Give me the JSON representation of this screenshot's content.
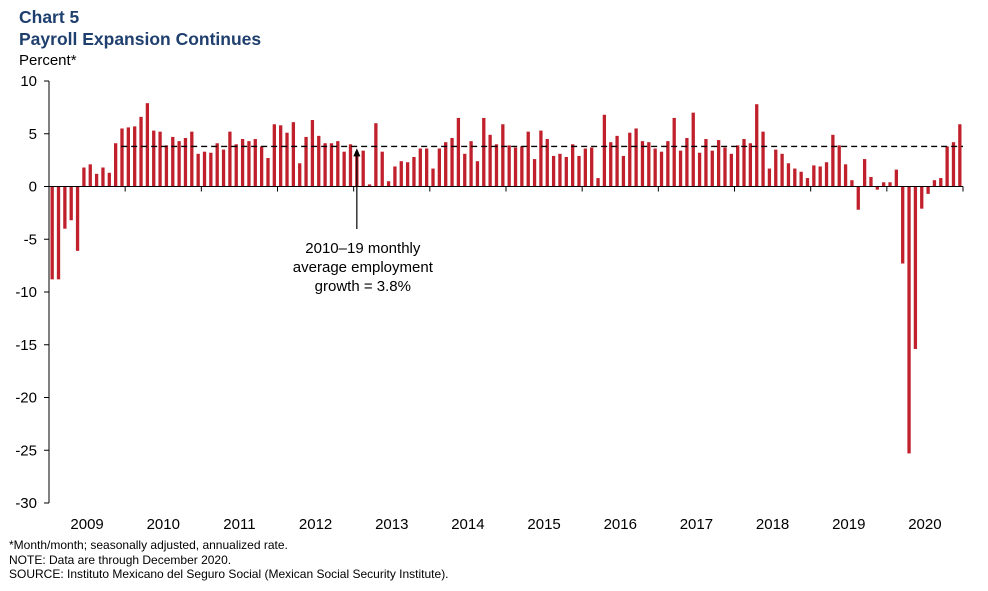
{
  "header": {
    "chart_number": "Chart 5",
    "title": "Payroll Expansion Continues",
    "units": "Percent*"
  },
  "footnotes": [
    "*Month/month; seasonally adjusted, annualized rate.",
    "NOTE: Data are through December 2020.",
    "SOURCE: Instituto Mexicano del Seguro Social (Mexican Social Security Institute)."
  ],
  "annotation": {
    "lines": [
      "2010–19 monthly",
      "average employment",
      "growth = 3.8%"
    ]
  },
  "colors": {
    "bar": "#c0202b",
    "title": "#1f3f6e",
    "axis": "#000000",
    "reference_line": "#000000"
  },
  "chart_data": {
    "type": "bar",
    "title": "Payroll Expansion Continues",
    "ylabel": "Percent*",
    "xlabel": "",
    "ylim": [
      -30,
      10
    ],
    "yticks": [
      10,
      5,
      0,
      -5,
      -10,
      -15,
      -20,
      -25,
      -30
    ],
    "year_labels": [
      "2009",
      "2010",
      "2011",
      "2012",
      "2013",
      "2014",
      "2015",
      "2016",
      "2017",
      "2018",
      "2019",
      "2020"
    ],
    "grid": false,
    "legend": "none",
    "reference_line": {
      "value": 3.8,
      "from": "2010-01",
      "to": "2020-12",
      "style": "dashed",
      "label": "2010–19 monthly average employment growth = 3.8%"
    },
    "annotation_arrow_date": "2013-01",
    "series": [
      {
        "start": "2009-01",
        "frequency": "monthly",
        "values": [
          -8.8,
          -8.8,
          -4.0,
          -3.2,
          -6.1,
          1.8,
          2.1,
          1.2,
          1.8,
          1.3,
          4.1,
          5.5,
          5.6,
          5.7,
          6.6,
          7.9,
          5.3,
          5.2,
          3.9,
          4.7,
          4.3,
          4.6,
          5.2,
          3.1,
          3.3,
          3.2,
          4.1,
          3.5,
          5.2,
          4.0,
          4.5,
          4.3,
          4.5,
          3.8,
          2.7,
          5.9,
          5.8,
          5.1,
          6.1,
          2.2,
          4.7,
          6.3,
          4.8,
          4.1,
          4.1,
          4.3,
          3.3,
          4.0,
          3.3,
          3.4,
          0.2,
          6.0,
          3.3,
          0.5,
          1.9,
          2.4,
          2.3,
          2.8,
          3.6,
          3.6,
          1.7,
          3.6,
          4.2,
          4.6,
          6.5,
          3.1,
          4.3,
          2.4,
          6.5,
          4.9,
          4.0,
          5.9,
          3.9,
          3.7,
          3.8,
          5.2,
          2.6,
          5.3,
          4.5,
          2.9,
          3.1,
          2.8,
          4.0,
          2.9,
          3.6,
          3.7,
          0.8,
          6.8,
          4.2,
          4.8,
          2.9,
          5.1,
          5.5,
          4.3,
          4.2,
          3.6,
          3.3,
          4.3,
          6.5,
          3.4,
          4.6,
          7.0,
          3.2,
          4.5,
          3.4,
          4.4,
          3.7,
          3.1,
          3.9,
          4.5,
          4.1,
          7.8,
          5.2,
          1.7,
          3.5,
          3.1,
          2.2,
          1.7,
          1.4,
          0.8,
          2.0,
          1.9,
          2.3,
          4.9,
          3.9,
          2.1,
          0.6,
          -2.2,
          2.6,
          0.9,
          -0.3,
          0.4,
          0.4,
          1.6,
          -7.3,
          -25.3,
          -15.4,
          -2.1,
          -0.7,
          0.6,
          0.8,
          3.8,
          4.2,
          5.9
        ]
      }
    ]
  }
}
